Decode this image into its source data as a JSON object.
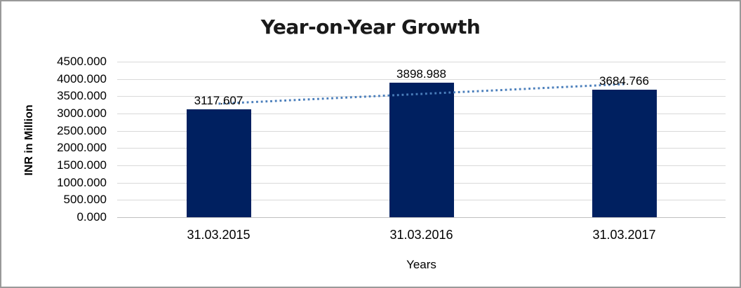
{
  "window": {
    "background_color": "#ffffff",
    "frame_border_color": "#999999"
  },
  "chart_data": {
    "type": "bar",
    "title": "Year-on-Year Growth",
    "xlabel": "Years",
    "ylabel": "INR in Million",
    "categories": [
      "31.03.2015",
      "31.03.2016",
      "31.03.2017"
    ],
    "values": [
      3117.607,
      3898.988,
      3684.766
    ],
    "data_labels": [
      "3117.607",
      "3898.988",
      "3684.766"
    ],
    "ylim": [
      0,
      4500
    ],
    "ytick_step": 500,
    "ytick_labels": [
      "0.000",
      "500.000",
      "1000.000",
      "1500.000",
      "2000.000",
      "2500.000",
      "3000.000",
      "3500.000",
      "4000.000",
      "4500.000"
    ],
    "grid": true,
    "legend": "none",
    "bar_color": "#002060",
    "gridline_color": "#d9d9d9",
    "axis_line_color": "#bfbfbf",
    "trendline": {
      "type": "linear",
      "style": "dotted",
      "color": "#4a7ebb",
      "start_value": 3283.5,
      "end_value": 3850.7
    }
  }
}
